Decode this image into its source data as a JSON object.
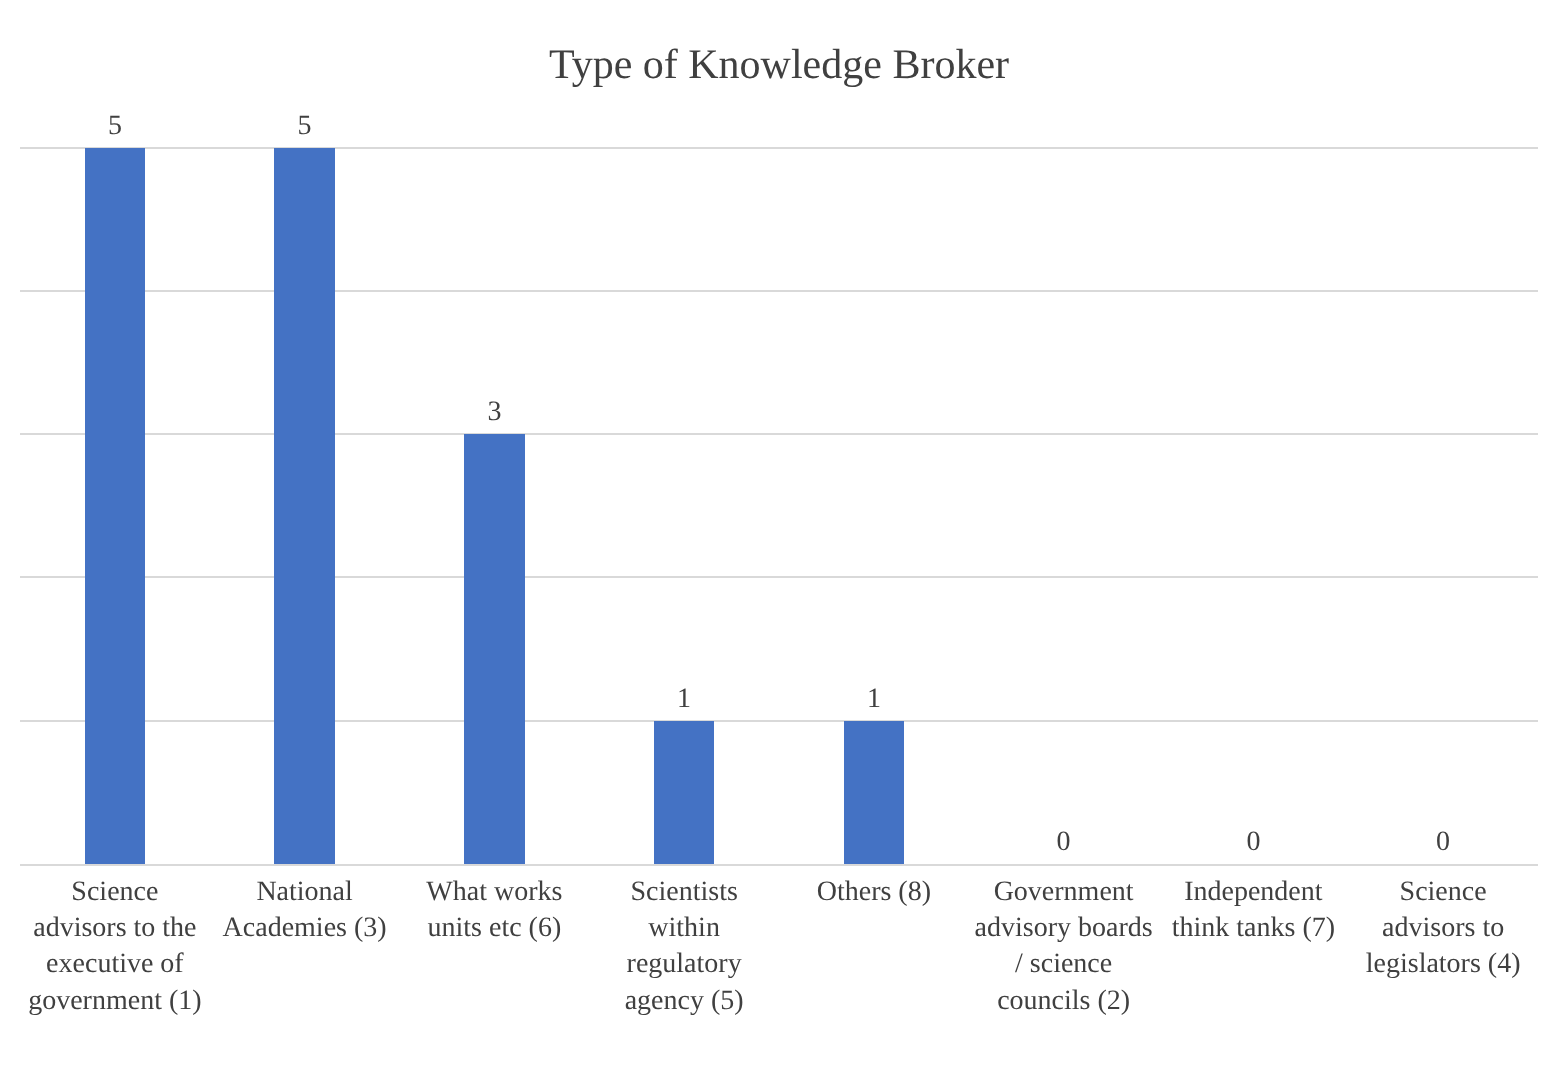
{
  "chart_data": {
    "type": "bar",
    "title": "Type of Knowledge Broker",
    "categories": [
      "Science advisors to the executive of government (1)",
      "National Academies (3)",
      "What works units etc (6)",
      "Scientists within regulatory agency (5)",
      "Others (8)",
      "Government advisory boards / science councils (2)",
      "Independent think tanks (7)",
      "Science advisors to legislators (4)"
    ],
    "values": [
      5,
      5,
      3,
      1,
      1,
      0,
      0,
      0
    ],
    "color": "#4472c4",
    "grid": "y",
    "tick_labels": "x",
    "data_labels": true
  }
}
